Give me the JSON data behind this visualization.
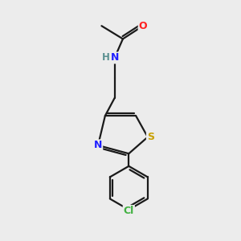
{
  "background_color": "#ececec",
  "bond_color": "#1a1a1a",
  "atom_colors": {
    "O": "#ff2020",
    "N": "#2020ff",
    "S": "#c8a000",
    "Cl": "#40b040",
    "C": "#1a1a1a",
    "H": "#5a9090"
  },
  "figsize": [
    3.0,
    3.0
  ],
  "dpi": 100
}
